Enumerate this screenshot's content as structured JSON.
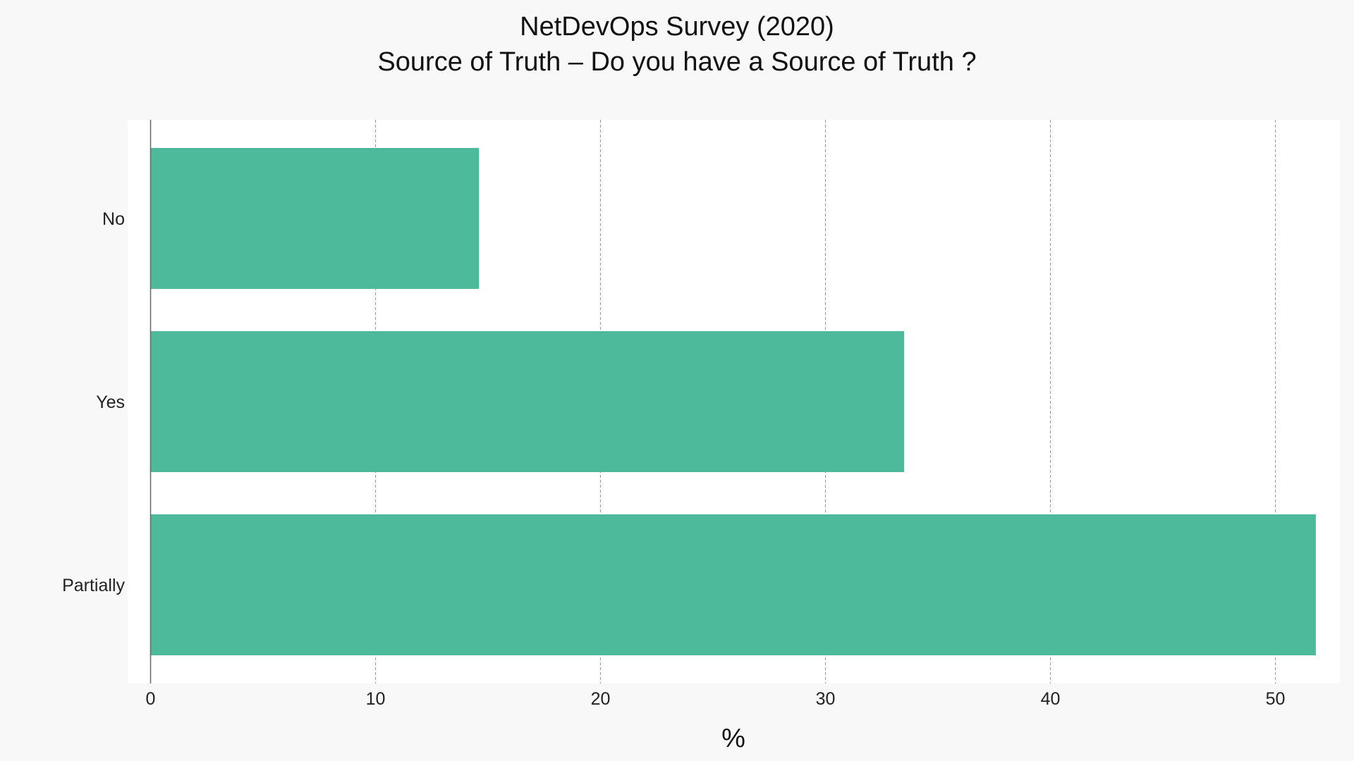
{
  "chart_data": {
    "type": "bar",
    "orientation": "horizontal",
    "title": "NetDevOps Survey (2020)",
    "subtitle": "Source of Truth – Do you have a Source of Truth ?",
    "categories": [
      "No",
      "Yes",
      "Partially"
    ],
    "values": [
      14.6,
      33.5,
      51.8
    ],
    "xlabel": "%",
    "ylabel": "",
    "xlim": [
      0,
      53
    ],
    "xticks": [
      "0",
      "10",
      "20",
      "30",
      "40",
      "50"
    ],
    "grid": "vertical-dashed",
    "bar_color": "#4dbb9b",
    "background_color": "#f8f8f8",
    "plot_background_color": "#ffffff"
  }
}
